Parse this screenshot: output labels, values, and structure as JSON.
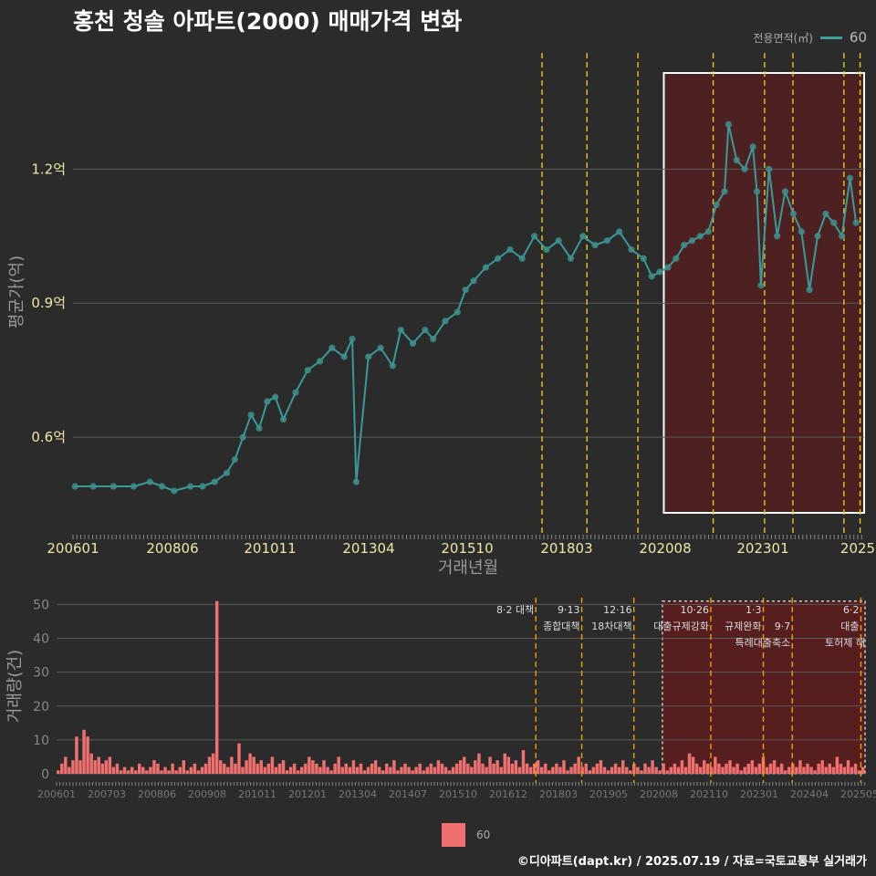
{
  "title": "홍천 청솔 아파트(2000) 매매가격 변화",
  "footer": "©디아파트(dapt.kr) / 2025.07.19 / 자료=국토교통부 실거래가",
  "legend_top": {
    "title": "전용면적(㎡)",
    "label": "60"
  },
  "legend_bottom": {
    "label": "60"
  },
  "colors": {
    "background": "#2b2b2b",
    "line": "#3a9a9a",
    "point": "#3d8f8a",
    "bar": "#f07070",
    "highlight": "#6a1a1a",
    "policy_line": "#e6c619",
    "policy_line_bottom": "#f0a000"
  },
  "chart_data": [
    {
      "type": "line",
      "name": "price",
      "xlabel": "거래년월",
      "ylabel": "평균가(억)",
      "x_ticks": [
        "200601",
        "200806",
        "201011",
        "201304",
        "201510",
        "201803",
        "202008",
        "202301",
        "2025"
      ],
      "y_ticks": [
        0.6,
        0.9,
        1.2
      ],
      "y_tick_labels": [
        "0.6억",
        "0.9억",
        "1.2억"
      ],
      "ylim": [
        0.39,
        1.46
      ],
      "xlim": [
        2006.0,
        2025.55
      ],
      "policy_dates": [
        2017.59,
        2018.7,
        2019.96,
        2021.82,
        2023.09,
        2023.79,
        2025.05,
        2025.45
      ],
      "highlight_range": [
        2020.6,
        2025.55
      ],
      "series": [
        {
          "name": "60",
          "points": [
            [
              2006.05,
              0.49
            ],
            [
              2006.5,
              0.49
            ],
            [
              2007.0,
              0.49
            ],
            [
              2007.5,
              0.49
            ],
            [
              2007.9,
              0.5
            ],
            [
              2008.2,
              0.49
            ],
            [
              2008.5,
              0.48
            ],
            [
              2008.9,
              0.49
            ],
            [
              2009.2,
              0.49
            ],
            [
              2009.5,
              0.5
            ],
            [
              2009.8,
              0.52
            ],
            [
              2010.0,
              0.55
            ],
            [
              2010.2,
              0.6
            ],
            [
              2010.4,
              0.65
            ],
            [
              2010.6,
              0.62
            ],
            [
              2010.8,
              0.68
            ],
            [
              2011.0,
              0.69
            ],
            [
              2011.2,
              0.64
            ],
            [
              2011.5,
              0.7
            ],
            [
              2011.8,
              0.75
            ],
            [
              2012.1,
              0.77
            ],
            [
              2012.4,
              0.8
            ],
            [
              2012.7,
              0.78
            ],
            [
              2012.9,
              0.82
            ],
            [
              2013.0,
              0.5
            ],
            [
              2013.3,
              0.78
            ],
            [
              2013.6,
              0.8
            ],
            [
              2013.9,
              0.76
            ],
            [
              2014.1,
              0.84
            ],
            [
              2014.4,
              0.81
            ],
            [
              2014.7,
              0.84
            ],
            [
              2014.9,
              0.82
            ],
            [
              2015.2,
              0.86
            ],
            [
              2015.5,
              0.88
            ],
            [
              2015.7,
              0.93
            ],
            [
              2015.9,
              0.95
            ],
            [
              2016.2,
              0.98
            ],
            [
              2016.5,
              1.0
            ],
            [
              2016.8,
              1.02
            ],
            [
              2017.1,
              1.0
            ],
            [
              2017.4,
              1.05
            ],
            [
              2017.7,
              1.02
            ],
            [
              2018.0,
              1.04
            ],
            [
              2018.3,
              1.0
            ],
            [
              2018.6,
              1.05
            ],
            [
              2018.9,
              1.03
            ],
            [
              2019.2,
              1.04
            ],
            [
              2019.5,
              1.06
            ],
            [
              2019.8,
              1.02
            ],
            [
              2020.1,
              1.0
            ],
            [
              2020.3,
              0.96
            ],
            [
              2020.5,
              0.97
            ],
            [
              2020.7,
              0.98
            ],
            [
              2020.9,
              1.0
            ],
            [
              2021.1,
              1.03
            ],
            [
              2021.3,
              1.04
            ],
            [
              2021.5,
              1.05
            ],
            [
              2021.7,
              1.06
            ],
            [
              2021.9,
              1.12
            ],
            [
              2022.1,
              1.15
            ],
            [
              2022.2,
              1.3
            ],
            [
              2022.4,
              1.22
            ],
            [
              2022.6,
              1.2
            ],
            [
              2022.8,
              1.25
            ],
            [
              2022.9,
              1.15
            ],
            [
              2023.0,
              0.94
            ],
            [
              2023.2,
              1.2
            ],
            [
              2023.4,
              1.05
            ],
            [
              2023.6,
              1.15
            ],
            [
              2023.8,
              1.1
            ],
            [
              2024.0,
              1.06
            ],
            [
              2024.2,
              0.93
            ],
            [
              2024.4,
              1.05
            ],
            [
              2024.6,
              1.1
            ],
            [
              2024.8,
              1.08
            ],
            [
              2025.0,
              1.05
            ],
            [
              2025.2,
              1.18
            ],
            [
              2025.35,
              1.08
            ]
          ]
        }
      ]
    },
    {
      "type": "bar",
      "name": "volume",
      "ylabel": "거래량(건)",
      "y_ticks": [
        0,
        10,
        20,
        30,
        40,
        50
      ],
      "ylim": [
        0,
        52
      ],
      "xlim": [
        2006.0,
        2025.55
      ],
      "x_ticks": [
        "200601",
        "200703",
        "200806",
        "200908",
        "201011",
        "201201",
        "201304",
        "201407",
        "201510",
        "201612",
        "201803",
        "201905",
        "202008",
        "202110",
        "202301",
        "202404",
        "202505"
      ],
      "highlight_range": [
        2020.65,
        2025.55
      ],
      "annotations": [
        {
          "date": "8·2 대책",
          "x": 2017.59,
          "line1": "8·2 대책",
          "line2": ""
        },
        {
          "date": "9·13",
          "x": 2018.7,
          "line1": "9·13",
          "line2": "종합대책"
        },
        {
          "date": "12·16",
          "x": 2019.96,
          "line1": "12·16",
          "line2": "18차대책"
        },
        {
          "date": "10·26",
          "x": 2021.82,
          "line1": "10·26",
          "line2": "대출규제강화"
        },
        {
          "date": "1·3",
          "x": 2023.09,
          "line1": "1·3",
          "line2": "규제완화"
        },
        {
          "date": "9·7",
          "x": 2023.79,
          "line1": "9·7",
          "line2": "특례대출축소"
        },
        {
          "date": "6·2",
          "x": 2025.45,
          "line1": "6·2",
          "line2": "대출"
        }
      ],
      "extra_annotation": "토허제 해",
      "series": [
        {
          "name": "60",
          "values": [
            1,
            3,
            5,
            2,
            4,
            11,
            4,
            13,
            11,
            6,
            4,
            5,
            3,
            4,
            5,
            2,
            3,
            1,
            2,
            1,
            2,
            1,
            3,
            2,
            1,
            2,
            4,
            3,
            1,
            2,
            1,
            3,
            1,
            2,
            4,
            1,
            2,
            3,
            1,
            2,
            3,
            5,
            6,
            51,
            4,
            3,
            2,
            5,
            3,
            9,
            2,
            4,
            6,
            5,
            3,
            4,
            2,
            3,
            5,
            2,
            3,
            4,
            1,
            2,
            3,
            1,
            2,
            3,
            5,
            4,
            3,
            2,
            4,
            2,
            1,
            3,
            5,
            2,
            3,
            2,
            4,
            2,
            3,
            1,
            2,
            3,
            4,
            2,
            1,
            3,
            2,
            4,
            1,
            2,
            3,
            2,
            1,
            2,
            3,
            1,
            2,
            3,
            2,
            4,
            3,
            2,
            1,
            2,
            3,
            4,
            5,
            3,
            2,
            4,
            6,
            3,
            2,
            5,
            3,
            4,
            2,
            6,
            5,
            3,
            4,
            2,
            7,
            3,
            2,
            3,
            4,
            2,
            3,
            1,
            2,
            3,
            2,
            4,
            1,
            2,
            3,
            5,
            2,
            3,
            1,
            2,
            3,
            4,
            2,
            1,
            2,
            3,
            2,
            4,
            2,
            1,
            3,
            2,
            1,
            3,
            2,
            4,
            2,
            1,
            3,
            1,
            2,
            3,
            2,
            4,
            2,
            6,
            5,
            3,
            2,
            4,
            3,
            2,
            5,
            3,
            2,
            3,
            4,
            2,
            3,
            1,
            2,
            3,
            4,
            2,
            3,
            5,
            2,
            3,
            4,
            2,
            3,
            1,
            2,
            3,
            2,
            4,
            2,
            3,
            2,
            1,
            3,
            4,
            2,
            3,
            2,
            5,
            3,
            2,
            4,
            2,
            3,
            1,
            2
          ]
        }
      ]
    }
  ]
}
